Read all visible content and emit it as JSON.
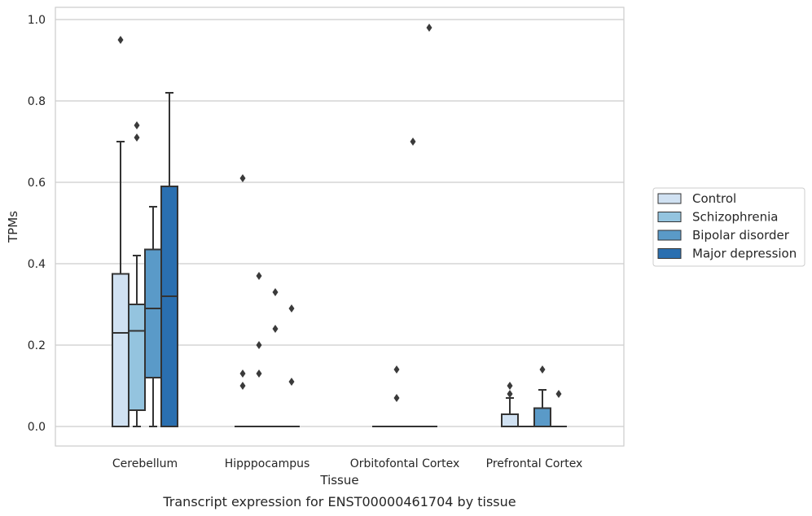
{
  "chart_data": {
    "type": "box",
    "xlabel": "Tissue",
    "ylabel": "TPMs",
    "caption": "Transcript expression for ENST00000461704 by tissue",
    "ylim": [
      -0.045,
      1.03
    ],
    "yticks": [
      "0.0",
      "0.2",
      "0.4",
      "0.6",
      "0.8",
      "1.0"
    ],
    "grid": "horizontal",
    "legend_position": "right",
    "categories": [
      "Cerebellum",
      "Hipppocampus",
      "Orbitofontal Cortex",
      "Prefrontal Cortex"
    ],
    "series": [
      {
        "name": "Control",
        "color": "#d0e1f2",
        "boxes": [
          {
            "min": 0.0,
            "q1": 0.0,
            "median": 0.23,
            "q3": 0.375,
            "max": 0.7,
            "outliers": [
              0.95
            ]
          },
          {
            "min": 0.0,
            "q1": 0.0,
            "median": 0.0,
            "q3": 0.0,
            "max": 0.0,
            "outliers": [
              0.1,
              0.13,
              0.61
            ]
          },
          {
            "min": 0.0,
            "q1": 0.0,
            "median": 0.0,
            "q3": 0.0,
            "max": 0.0,
            "outliers": []
          },
          {
            "min": 0.0,
            "q1": 0.0,
            "median": 0.0,
            "q3": 0.03,
            "max": 0.07,
            "outliers": [
              0.08,
              0.1
            ]
          }
        ]
      },
      {
        "name": "Schizophrenia",
        "color": "#94c4df",
        "boxes": [
          {
            "min": 0.0,
            "q1": 0.04,
            "median": 0.235,
            "q3": 0.3,
            "max": 0.42,
            "outliers": [
              0.71,
              0.74
            ]
          },
          {
            "min": 0.0,
            "q1": 0.0,
            "median": 0.0,
            "q3": 0.0,
            "max": 0.0,
            "outliers": [
              0.13,
              0.2,
              0.37
            ]
          },
          {
            "min": 0.0,
            "q1": 0.0,
            "median": 0.0,
            "q3": 0.0,
            "max": 0.0,
            "outliers": [
              0.07,
              0.14
            ]
          },
          {
            "min": 0.0,
            "q1": 0.0,
            "median": 0.0,
            "q3": 0.0,
            "max": 0.0,
            "outliers": []
          }
        ]
      },
      {
        "name": "Bipolar disorder",
        "color": "#5a9ac8",
        "boxes": [
          {
            "min": 0.0,
            "q1": 0.12,
            "median": 0.29,
            "q3": 0.435,
            "max": 0.54,
            "outliers": []
          },
          {
            "min": 0.0,
            "q1": 0.0,
            "median": 0.0,
            "q3": 0.0,
            "max": 0.0,
            "outliers": [
              0.24,
              0.33
            ]
          },
          {
            "min": 0.0,
            "q1": 0.0,
            "median": 0.0,
            "q3": 0.0,
            "max": 0.0,
            "outliers": [
              0.7
            ]
          },
          {
            "min": 0.0,
            "q1": 0.0,
            "median": 0.0,
            "q3": 0.045,
            "max": 0.09,
            "outliers": [
              0.14
            ]
          }
        ]
      },
      {
        "name": "Major depression",
        "color": "#2a6fb0",
        "boxes": [
          {
            "min": 0.0,
            "q1": 0.0,
            "median": 0.32,
            "q3": 0.59,
            "max": 0.82,
            "outliers": []
          },
          {
            "min": 0.0,
            "q1": 0.0,
            "median": 0.0,
            "q3": 0.0,
            "max": 0.0,
            "outliers": [
              0.11,
              0.29
            ]
          },
          {
            "min": 0.0,
            "q1": 0.0,
            "median": 0.0,
            "q3": 0.0,
            "max": 0.0,
            "outliers": [
              0.98
            ]
          },
          {
            "min": 0.0,
            "q1": 0.0,
            "median": 0.0,
            "q3": 0.0,
            "max": 0.0,
            "outliers": [
              0.08
            ]
          }
        ]
      }
    ]
  }
}
